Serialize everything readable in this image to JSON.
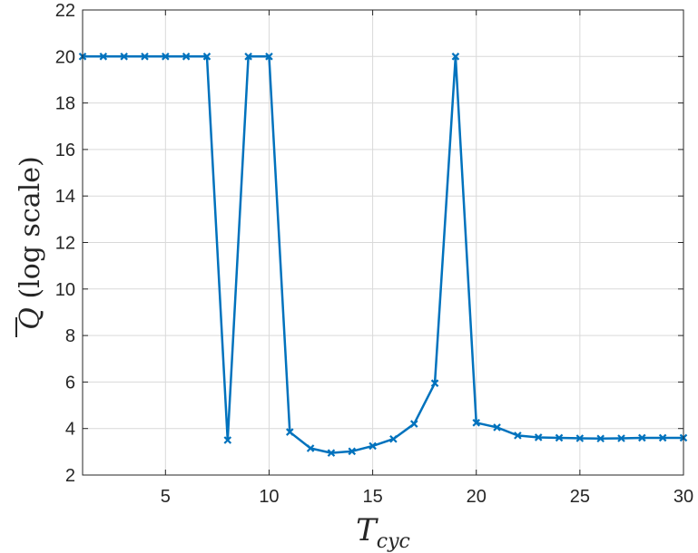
{
  "chart_data": {
    "type": "line",
    "title": "",
    "xlabel": "T_cyc",
    "xlabel_main": "T",
    "xlabel_sub": "cyc",
    "ylabel": "Q̄ (log scale)",
    "ylabel_symbol": "Q",
    "ylabel_suffix": " (log scale)",
    "xlim": [
      1,
      30
    ],
    "ylim": [
      2,
      22
    ],
    "xticks": [
      5,
      10,
      15,
      20,
      25,
      30
    ],
    "yticks": [
      2,
      4,
      6,
      8,
      10,
      12,
      14,
      16,
      18,
      20,
      22
    ],
    "grid": true,
    "legend": "none",
    "series": [
      {
        "color": "#0072BD",
        "marker": "x",
        "x": [
          1,
          2,
          3,
          4,
          5,
          6,
          7,
          8,
          9,
          10,
          11,
          12,
          13,
          14,
          15,
          16,
          17,
          18,
          19,
          20,
          21,
          22,
          23,
          24,
          25,
          26,
          27,
          28,
          29,
          30
        ],
        "y": [
          20,
          20,
          20,
          20,
          20,
          20,
          20,
          3.5,
          20,
          20,
          3.85,
          3.15,
          2.95,
          3.02,
          3.25,
          3.55,
          4.2,
          5.95,
          20,
          4.25,
          4.05,
          3.7,
          3.62,
          3.6,
          3.58,
          3.57,
          3.58,
          3.6,
          3.6,
          3.6
        ]
      }
    ]
  }
}
